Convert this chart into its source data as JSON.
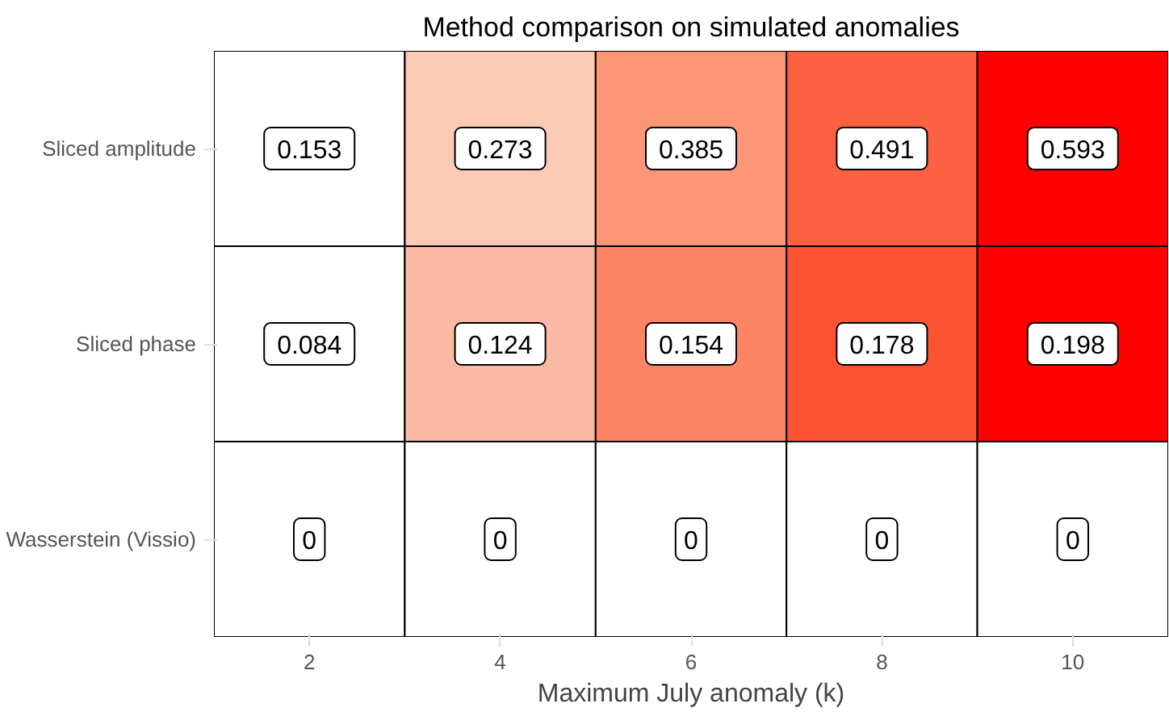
{
  "chart_data": {
    "type": "heatmap",
    "title": "Method comparison on simulated anomalies",
    "xlabel": "Maximum July anomaly (k)",
    "categories": [
      "2",
      "4",
      "6",
      "8",
      "10"
    ],
    "y_categories": [
      "Sliced amplitude",
      "Sliced phase",
      "Wasserstein (Vissio)"
    ],
    "cells": [
      [
        0.153,
        0.273,
        0.385,
        0.491,
        0.593
      ],
      [
        0.084,
        0.124,
        0.154,
        0.178,
        0.198
      ],
      [
        0,
        0,
        0,
        0,
        0
      ]
    ],
    "colors": [
      [
        "#ffffff",
        "#fdcab5",
        "#fc9676",
        "#fe6142",
        "#ff0000"
      ],
      [
        "#ffffff",
        "#fcb9a3",
        "#fc8566",
        "#fe5332",
        "#ff0000"
      ],
      [
        "#ffffff",
        "#ffffff",
        "#ffffff",
        "#ffffff",
        "#ffffff"
      ]
    ],
    "data_labels": true
  }
}
